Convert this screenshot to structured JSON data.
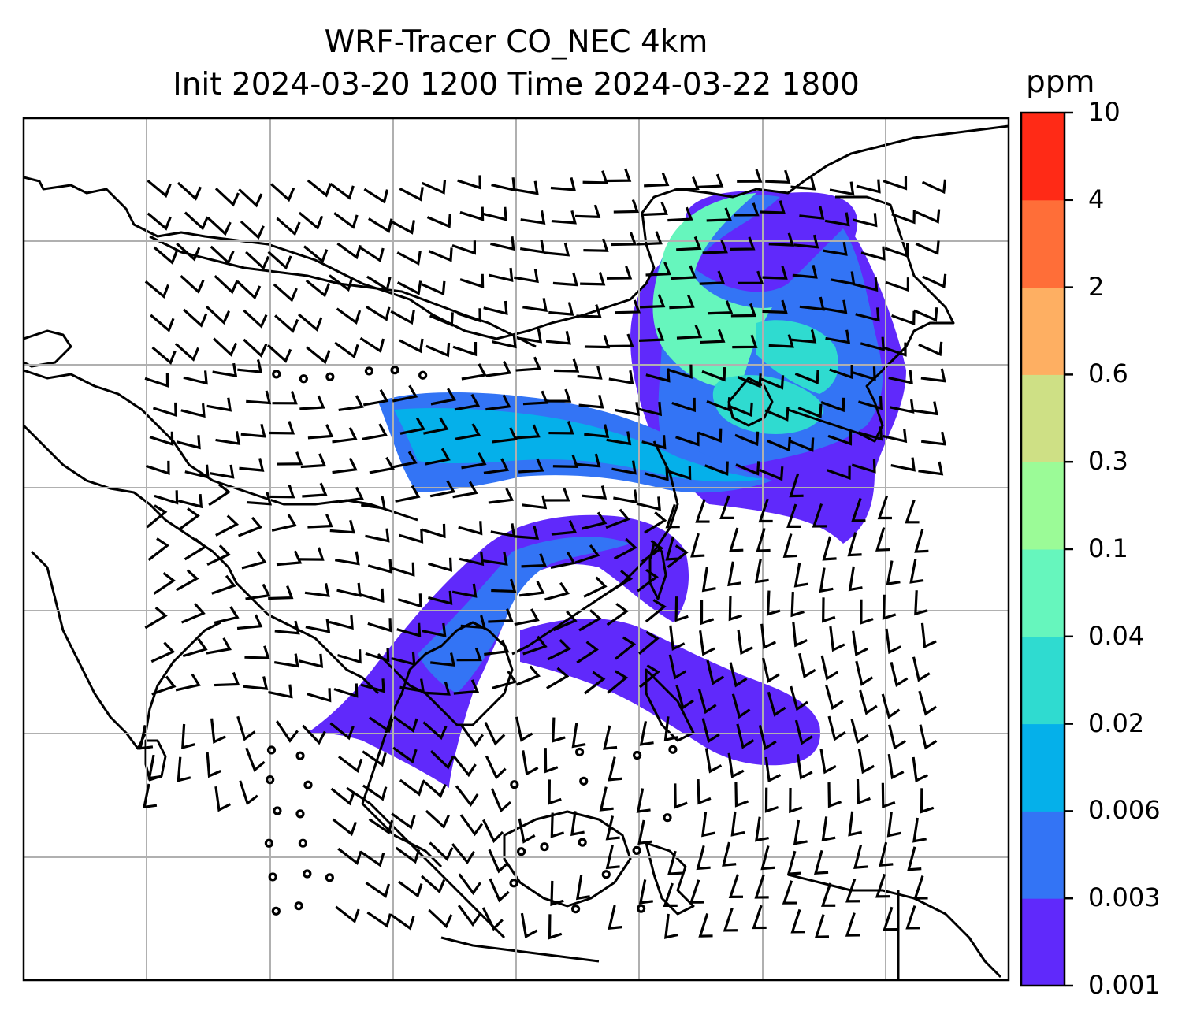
{
  "title": {
    "line1": "WRF-Tracer CO_NEC 4km",
    "line2": "Init 2024-03-20 1200 Time 2024-03-22 1800"
  },
  "colorbar": {
    "unit": "ppm",
    "levels": [
      "0.001",
      "0.003",
      "0.006",
      "0.02",
      "0.04",
      "0.1",
      "0.3",
      "0.6",
      "2",
      "4",
      "10"
    ],
    "colors": [
      "#6029fb",
      "#3374f5",
      "#05b0ea",
      "#2fdbd0",
      "#66f6bd",
      "#9bfb97",
      "#cee085",
      "#feaf62",
      "#ff6e38",
      "#ff2a16"
    ]
  },
  "map": {
    "gridlines": true,
    "wind_barbs": true,
    "plume_colors": {
      "faint": "#6029fb",
      "low": "#3374f5",
      "mid": "#05b0ea",
      "mid2": "#2fdbd0",
      "high": "#66f6bd"
    }
  }
}
